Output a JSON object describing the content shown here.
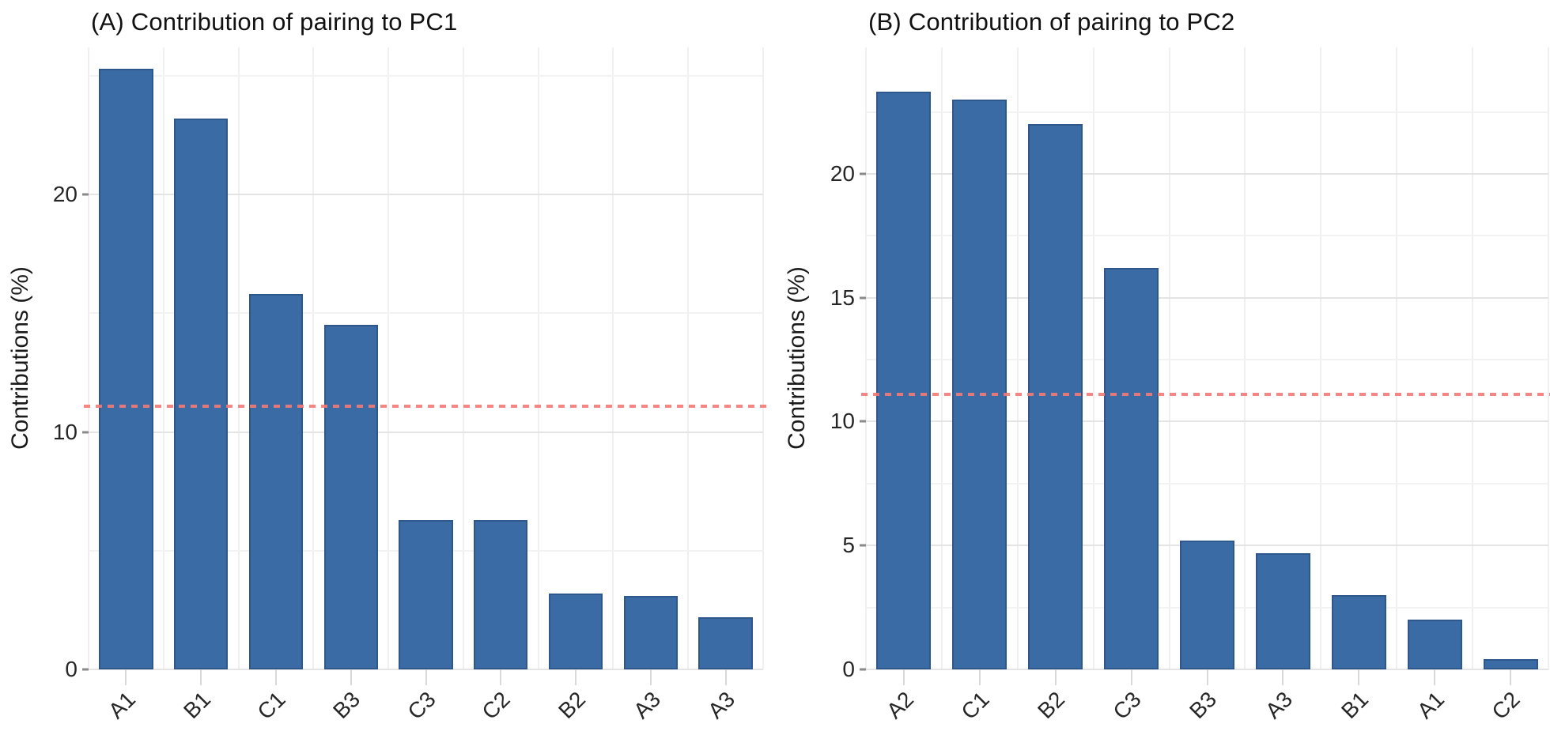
{
  "figure": {
    "background": "#ffffff",
    "bar_color": "#3a6ba4",
    "bar_edge_color": "rgba(25,55,95,0.35)",
    "ref_line_color": "rgba(244,121,117,0.9)",
    "text_color": "#262626"
  },
  "chart_data": [
    {
      "type": "bar",
      "title": "(A) Contribution of pairing to PC1",
      "ylabel": "Contributions (%)",
      "xlabel": "",
      "categories": [
        "A1",
        "B1",
        "C1",
        "B3",
        "C3",
        "C2",
        "B2",
        "A3",
        "A3"
      ],
      "values": [
        25.3,
        23.2,
        15.8,
        14.5,
        6.3,
        6.3,
        3.2,
        3.1,
        2.2
      ],
      "ylim": [
        0,
        26.2
      ],
      "yticks": [
        0,
        10,
        20
      ],
      "yticks_minor": [
        5,
        15,
        25
      ],
      "ref_line": 11.1,
      "grid": "on",
      "legend": "none"
    },
    {
      "type": "bar",
      "title": "(B) Contribution of pairing to PC2",
      "ylabel": "Contributions (%)",
      "xlabel": "",
      "categories": [
        "A2",
        "C1",
        "B2",
        "C3",
        "B3",
        "A3",
        "B1",
        "A1",
        "C2"
      ],
      "values": [
        23.3,
        23.0,
        22.0,
        16.2,
        5.2,
        4.7,
        3.0,
        2.0,
        0.4
      ],
      "ylim": [
        0,
        25.1
      ],
      "yticks": [
        0,
        5,
        10,
        15,
        20
      ],
      "yticks_minor": [
        2.5,
        7.5,
        12.5,
        17.5,
        22.5
      ],
      "ref_line": 11.1,
      "grid": "on",
      "legend": "none"
    }
  ],
  "layout_note": "two ggplot-style contribution bar charts with dotted expected-average reference line"
}
